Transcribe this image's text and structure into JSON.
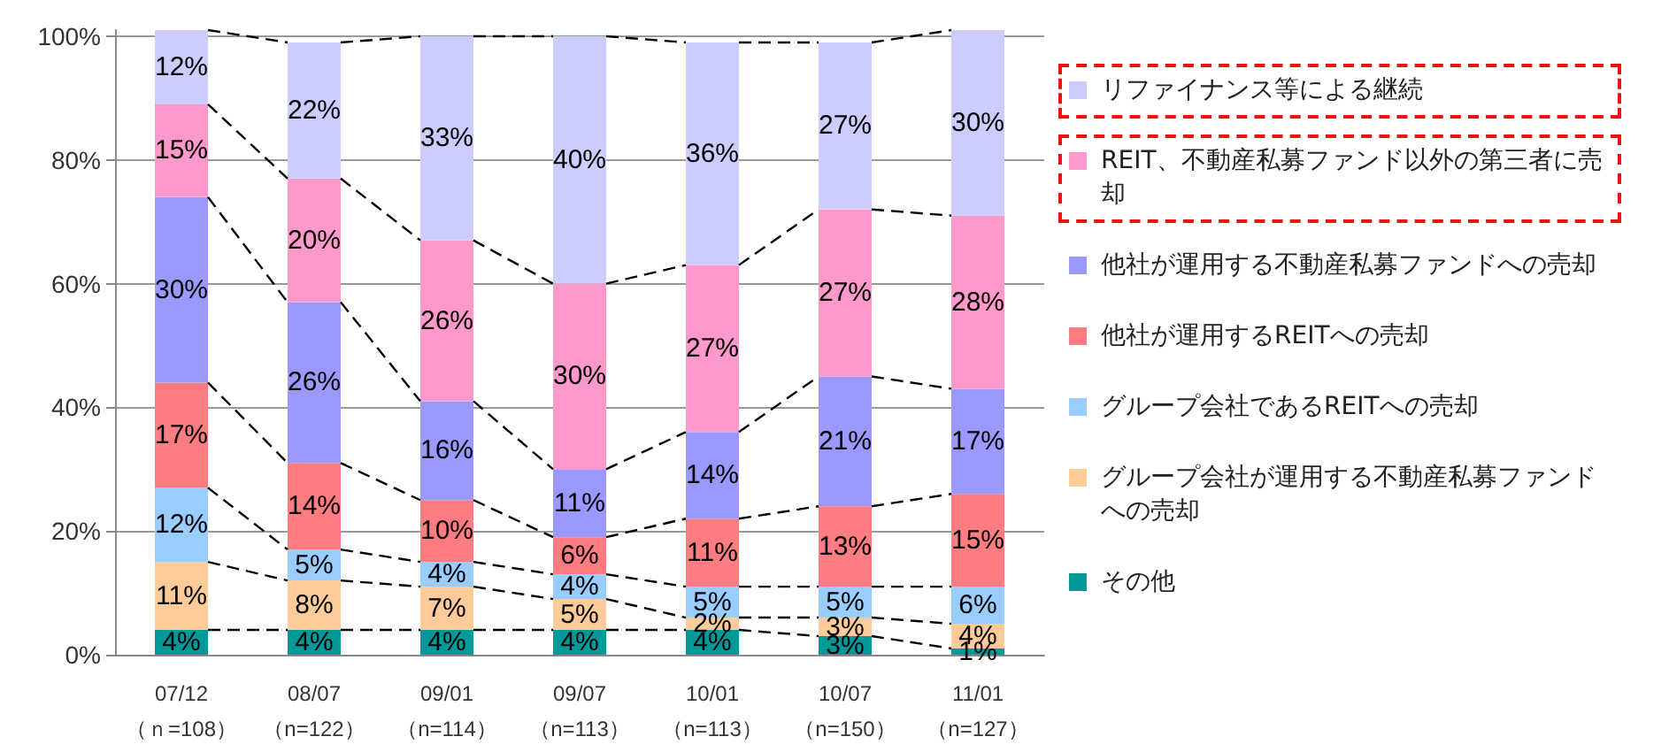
{
  "chart_data": {
    "type": "bar",
    "stacked": true,
    "categories": [
      "07/12（ｎ=108）",
      "08/07（n=122）",
      "09/01（n=114）",
      "09/07（n=113）",
      "10/01（n=113）",
      "10/07（n=150）",
      "11/01（n=127）"
    ],
    "series": [
      {
        "name": "その他",
        "color": "#009999",
        "values": [
          4,
          4,
          4,
          4,
          4,
          3,
          1
        ],
        "value_labels": [
          "4%",
          "4%",
          "4%",
          "4%",
          "4%",
          "3%",
          "1%"
        ]
      },
      {
        "name": "グループ会社が運用する不動産私募ファンドへの売却",
        "color": "#ffcc99",
        "values": [
          11,
          8,
          7,
          5,
          2,
          3,
          4
        ],
        "value_labels": [
          "11%",
          "8%",
          "7%",
          "5%",
          "2%",
          "3%",
          "4%"
        ]
      },
      {
        "name": "グループ会社であるREITへの売却",
        "color": "#99ccff",
        "values": [
          12,
          5,
          4,
          4,
          5,
          5,
          6
        ],
        "value_labels": [
          "12%",
          "5%",
          "4%",
          "4%",
          "5%",
          "5%",
          "6%"
        ]
      },
      {
        "name": "他社が運用するREITへの売却",
        "color": "#ff7c80",
        "values": [
          17,
          14,
          10,
          6,
          11,
          13,
          15
        ],
        "value_labels": [
          "17%",
          "14%",
          "10%",
          "6%",
          "11%",
          "13%",
          "15%"
        ]
      },
      {
        "name": "他社が運用する不動産私募ファンドへの売却",
        "color": "#9999ff",
        "values": [
          30,
          26,
          16,
          11,
          14,
          21,
          17
        ],
        "value_labels": [
          "30%",
          "26%",
          "16%",
          "11%",
          "14%",
          "21%",
          "17%"
        ]
      },
      {
        "name": "REIT、不動産私募ファンド以外の第三者に売却",
        "color": "#ff99cc",
        "values": [
          15,
          20,
          26,
          30,
          27,
          27,
          28
        ],
        "value_labels": [
          "15%",
          "20%",
          "26%",
          "30%",
          "27%",
          "27%",
          "28%"
        ]
      },
      {
        "name": "リファイナンス等による継続",
        "color": "#ccccff",
        "values": [
          12,
          22,
          33,
          40,
          36,
          27,
          30
        ],
        "value_labels": [
          "12%",
          "22%",
          "33%",
          "40%",
          "36%",
          "27%",
          "30%"
        ]
      }
    ],
    "ylim": [
      0,
      101
    ],
    "yticks": [
      {
        "value": 0,
        "label": "0%"
      },
      {
        "value": 20,
        "label": "20%"
      },
      {
        "value": 40,
        "label": "40%"
      },
      {
        "value": 60,
        "label": "60%"
      },
      {
        "value": 80,
        "label": "80%"
      },
      {
        "value": 100,
        "label": "100%"
      }
    ],
    "grid": "y",
    "legend": "right",
    "line_style": "dashed"
  }
}
